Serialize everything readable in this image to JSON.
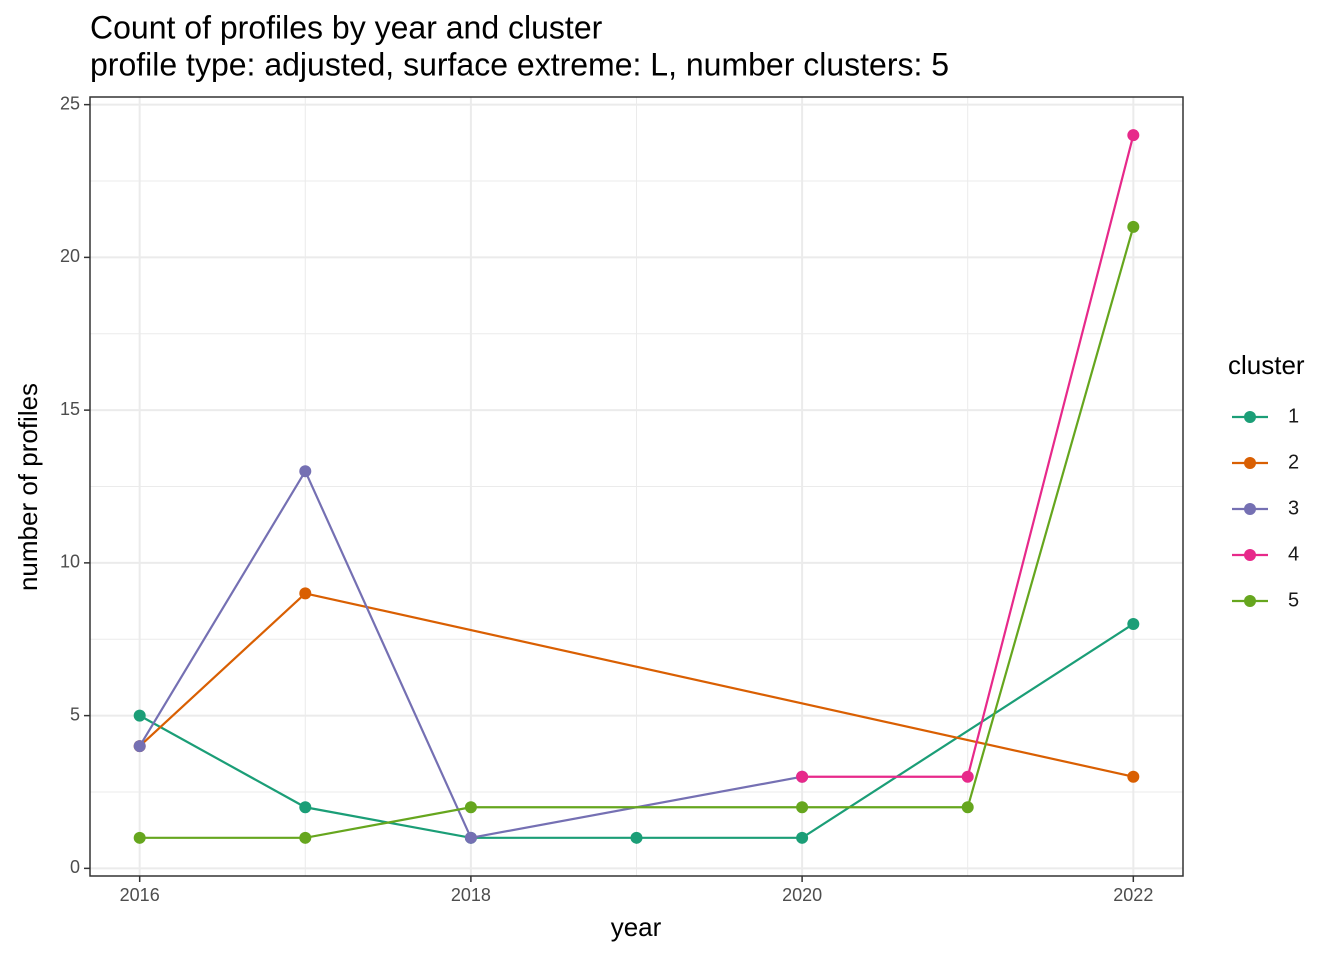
{
  "chart_data": {
    "type": "line",
    "title": "Count of profiles by year and cluster",
    "subtitle": "profile type: adjusted, surface extreme: L, number clusters: 5",
    "x_label": "year",
    "y_label": "number of profiles",
    "legend_title": "cluster",
    "legend": "right",
    "xlim": [
      2015.7,
      2022.3
    ],
    "xticks": [
      2016,
      2018,
      2020,
      2022
    ],
    "ylim": [
      -0.25,
      25.25
    ],
    "yticks": [
      0,
      5,
      10,
      15,
      20,
      25
    ],
    "grid": true,
    "series": [
      {
        "name": "1",
        "color": "#1b9e77",
        "x": [
          2016,
          2017,
          2018,
          2019,
          2020,
          2022
        ],
        "values": [
          5,
          2,
          1,
          1,
          1,
          8
        ]
      },
      {
        "name": "2",
        "color": "#d95f02",
        "x": [
          2016,
          2017,
          2022
        ],
        "values": [
          4,
          9,
          3
        ]
      },
      {
        "name": "3",
        "color": "#7570b3",
        "x": [
          2016,
          2017,
          2018,
          2020
        ],
        "values": [
          4,
          13,
          1,
          3
        ]
      },
      {
        "name": "4",
        "color": "#e7298a",
        "x": [
          2020,
          2021,
          2022
        ],
        "values": [
          3,
          3,
          24
        ]
      },
      {
        "name": "5",
        "color": "#66a61e",
        "x": [
          2016,
          2017,
          2018,
          2020,
          2021,
          2022
        ],
        "values": [
          1,
          1,
          2,
          2,
          2,
          21
        ]
      }
    ]
  }
}
